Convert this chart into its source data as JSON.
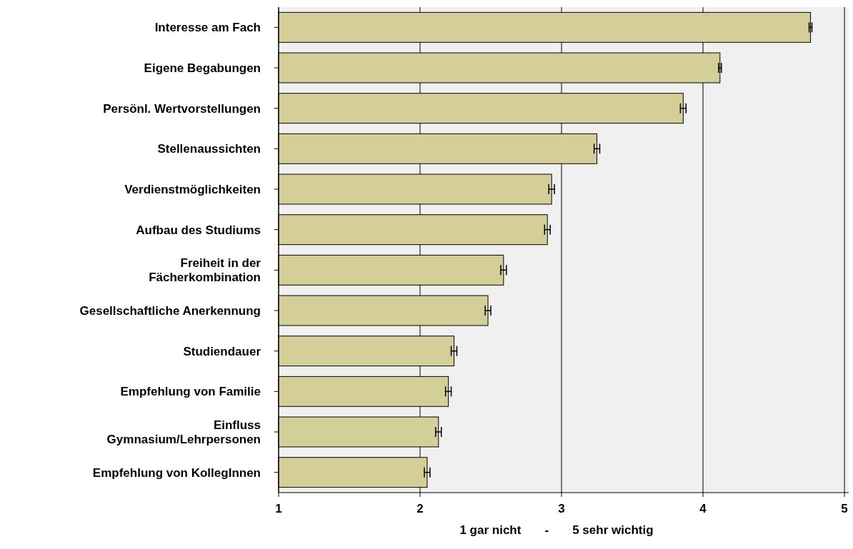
{
  "chart_data": {
    "type": "bar",
    "orientation": "horizontal",
    "xlabel": "1 gar nicht       -       5 sehr wichtig",
    "categories": [
      "Interesse am Fach",
      "Eigene Begabungen",
      "Persönl. Wertvorstellungen",
      "Stellenaussichten",
      "Verdienstmöglichkeiten",
      "Aufbau des Studiums",
      "Freiheit in der Fächerkombination",
      "Gesellschaftliche Anerkennung",
      "Studiendauer",
      "Empfehlung von Familie",
      "Einfluss Gymnasium/Lehrpersonen",
      "Empfehlung von KollegInnen"
    ],
    "values": [
      4.76,
      4.12,
      3.86,
      3.25,
      2.93,
      2.9,
      2.59,
      2.48,
      2.24,
      2.2,
      2.13,
      2.05
    ],
    "errors": [
      0.01,
      0.01,
      0.02,
      0.02,
      0.02,
      0.02,
      0.02,
      0.02,
      0.02,
      0.02,
      0.02,
      0.02
    ],
    "color": "#d4ce98",
    "xlim": [
      1,
      5.03
    ],
    "xticks": [
      1,
      2,
      3,
      4,
      5
    ],
    "grid": "x"
  }
}
